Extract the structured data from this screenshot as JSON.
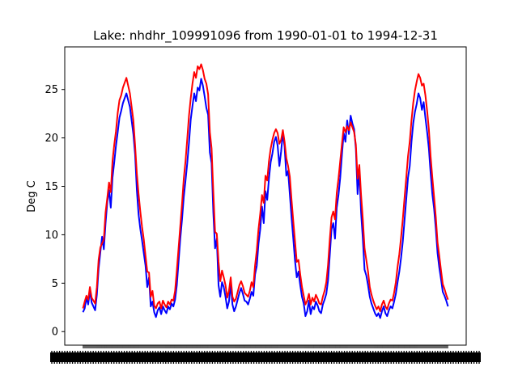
{
  "chart_data": {
    "type": "line",
    "title": "Lake: nhdhr_109991096 from 1990-01-01 to 1994-12-31",
    "xlabel": "",
    "ylabel": "Deg C",
    "x_start": "1990-01-01",
    "x_end": "1994-12-31",
    "x_resolution": "weekly",
    "ylim": [
      -1.4,
      29.4
    ],
    "yticks": [
      0,
      5,
      10,
      15,
      20,
      25
    ],
    "grid": false,
    "legend": "none",
    "series": [
      {
        "color": "#0000ff",
        "values": [
          2.0,
          2.4,
          3.5,
          2.8,
          4.2,
          3.0,
          2.6,
          2.2,
          3.8,
          6.5,
          8.2,
          9.8,
          8.5,
          11.2,
          13.4,
          14.6,
          12.8,
          15.9,
          17.5,
          19.2,
          20.6,
          22.1,
          22.8,
          23.6,
          24.1,
          24.6,
          23.9,
          23.2,
          21.8,
          20.4,
          18.3,
          14.6,
          12.1,
          10.6,
          9.4,
          8.1,
          6.8,
          4.6,
          5.6,
          2.6,
          3.1,
          2.0,
          1.5,
          2.2,
          2.5,
          1.8,
          2.6,
          2.2,
          1.9,
          2.6,
          2.3,
          2.9,
          2.6,
          3.3,
          4.8,
          7.2,
          9.6,
          11.6,
          13.9,
          15.6,
          17.4,
          19.5,
          21.9,
          23.3,
          24.6,
          23.8,
          25.2,
          24.9,
          26.1,
          25.4,
          24.3,
          23.1,
          22.4,
          18.5,
          17.4,
          12.3,
          8.6,
          9.6,
          4.8,
          3.6,
          5.1,
          4.6,
          3.6,
          2.4,
          3.1,
          4.9,
          2.8,
          2.1,
          2.6,
          3.3,
          4.0,
          4.5,
          3.9,
          3.2,
          3.1,
          2.8,
          3.4,
          4.1,
          3.7,
          5.9,
          6.8,
          9.1,
          10.6,
          12.9,
          11.2,
          14.5,
          13.6,
          15.8,
          17.5,
          18.4,
          19.6,
          20.1,
          19.2,
          17.1,
          18.6,
          20.5,
          19.1,
          16.1,
          16.6,
          14.2,
          11.8,
          9.6,
          7.3,
          5.6,
          6.2,
          4.8,
          3.6,
          2.9,
          1.6,
          2.1,
          3.2,
          1.8,
          2.6,
          2.3,
          3.1,
          2.7,
          2.1,
          1.9,
          2.8,
          3.3,
          3.9,
          5.3,
          7.9,
          10.6,
          11.2,
          9.6,
          12.8,
          14.1,
          15.9,
          18.3,
          20.5,
          19.6,
          21.8,
          20.4,
          22.3,
          21.5,
          20.9,
          18.9,
          14.2,
          16.6,
          12.3,
          9.6,
          6.4,
          5.8,
          4.8,
          3.6,
          2.9,
          2.4,
          1.9,
          1.6,
          1.9,
          1.4,
          2.1,
          2.6,
          1.9,
          1.6,
          2.2,
          2.6,
          2.4,
          3.1,
          3.9,
          5.1,
          6.2,
          7.6,
          9.3,
          11.5,
          13.7,
          15.9,
          17.1,
          19.6,
          21.5,
          22.7,
          23.5,
          24.6,
          24.1,
          22.9,
          23.7,
          22.1,
          20.6,
          18.9,
          16.4,
          14.2,
          12.7,
          10.6,
          8.1,
          6.6,
          5.4,
          4.1,
          3.7,
          3.2,
          2.6
        ]
      },
      {
        "color": "#ff0000",
        "values": [
          2.4,
          3.1,
          3.7,
          3.3,
          4.6,
          3.5,
          3.2,
          2.9,
          4.6,
          7.4,
          8.7,
          9.1,
          9.5,
          12.3,
          13.8,
          15.4,
          14.4,
          17.6,
          19.3,
          20.7,
          22.6,
          23.9,
          24.4,
          25.2,
          25.7,
          26.2,
          25.4,
          24.6,
          23.2,
          21.8,
          19.2,
          16.3,
          14.2,
          12.4,
          10.8,
          9.5,
          7.8,
          6.2,
          6.1,
          3.6,
          4.2,
          2.7,
          2.4,
          2.9,
          3.1,
          2.4,
          3.2,
          2.8,
          2.5,
          3.1,
          2.8,
          3.3,
          3.2,
          4.2,
          6.3,
          8.6,
          10.9,
          13.2,
          15.8,
          17.6,
          19.9,
          22.3,
          24.1,
          25.6,
          26.8,
          26.2,
          27.4,
          27.1,
          27.6,
          27.0,
          26.1,
          25.6,
          24.5,
          20.6,
          18.9,
          14.4,
          10.3,
          10.1,
          7.2,
          5.2,
          6.3,
          5.6,
          4.8,
          3.5,
          4.2,
          5.6,
          3.6,
          3.1,
          3.4,
          4.1,
          4.8,
          5.2,
          4.7,
          4.0,
          3.8,
          3.6,
          4.2,
          5.1,
          4.6,
          6.8,
          8.4,
          10.6,
          12.2,
          14.1,
          13.3,
          16.1,
          15.6,
          17.6,
          18.9,
          19.8,
          20.5,
          20.9,
          20.5,
          19.4,
          19.8,
          20.8,
          19.6,
          17.9,
          17.1,
          16.0,
          13.6,
          11.4,
          9.3,
          7.2,
          7.4,
          5.9,
          4.6,
          3.7,
          2.8,
          3.2,
          3.9,
          2.8,
          3.5,
          3.1,
          3.8,
          3.4,
          2.9,
          2.8,
          3.6,
          4.2,
          5.1,
          6.9,
          9.5,
          11.8,
          12.4,
          11.6,
          14.3,
          15.8,
          17.6,
          19.4,
          21.1,
          20.6,
          21.2,
          20.8,
          21.6,
          21.1,
          20.6,
          19.3,
          15.8,
          17.2,
          14.1,
          11.6,
          8.6,
          7.4,
          6.2,
          4.6,
          3.8,
          3.2,
          2.7,
          2.3,
          2.6,
          2.1,
          2.8,
          3.2,
          2.6,
          2.3,
          2.9,
          3.3,
          3.2,
          4.0,
          5.1,
          6.7,
          8.0,
          9.7,
          11.6,
          13.8,
          15.9,
          18.1,
          19.6,
          21.8,
          23.6,
          24.9,
          25.8,
          26.6,
          26.2,
          25.4,
          25.6,
          24.4,
          22.8,
          20.9,
          18.1,
          15.9,
          13.9,
          11.8,
          9.2,
          7.8,
          6.3,
          4.9,
          4.4,
          3.8,
          3.3
        ]
      }
    ]
  }
}
